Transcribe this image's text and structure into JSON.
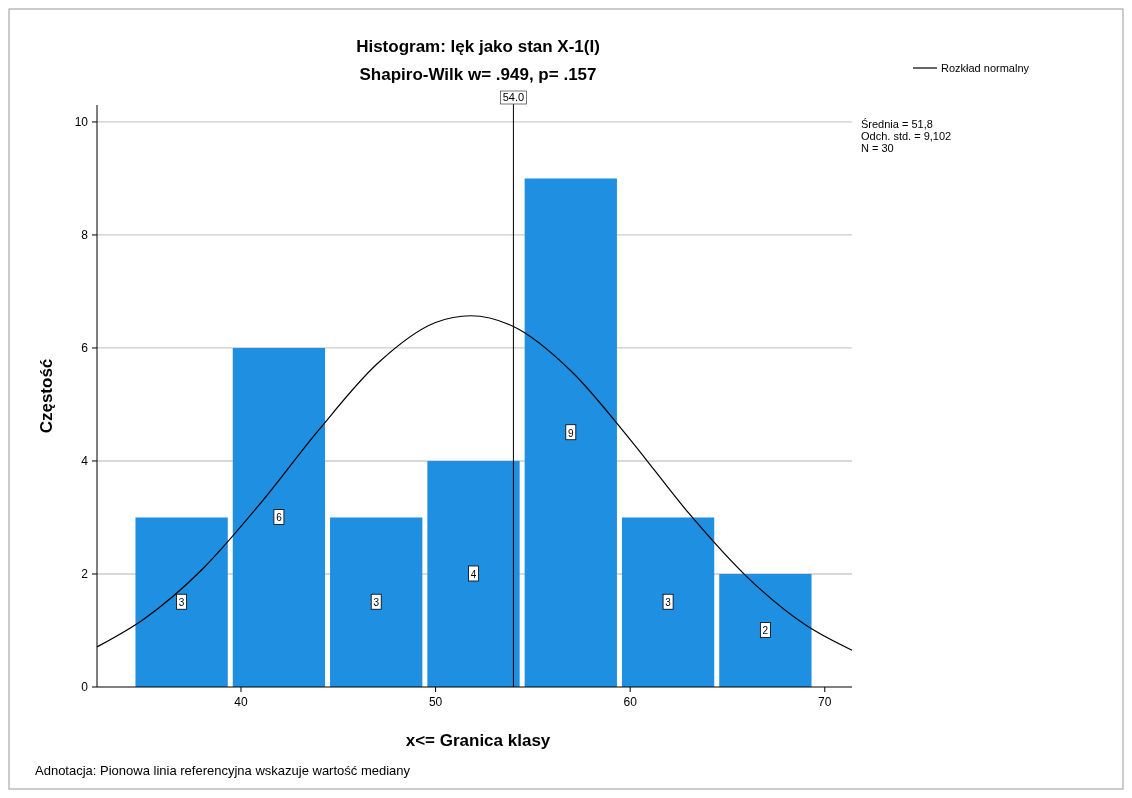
{
  "chart_data": {
    "type": "histogram",
    "title": "Histogram:  lęk jako stan X-1(I)",
    "subtitle": "Shapiro-Wilk w= .949, p= .157",
    "xlabel": "x<= Granica klasy",
    "ylabel": "Częstość",
    "bins": [
      34.5,
      39.5,
      44.5,
      49.5,
      54.5,
      59.5,
      64.5,
      69.5
    ],
    "values": [
      3,
      6,
      3,
      4,
      9,
      3,
      2
    ],
    "color": "#1e8fe1",
    "value_labels": [
      "3",
      "6",
      "3",
      "4",
      "9",
      "3",
      "2"
    ],
    "xlim": [
      32.6,
      71.4
    ],
    "ylim": [
      0,
      10.3
    ],
    "xticks": [
      40,
      50,
      60,
      70
    ],
    "yticks": [
      0,
      2,
      4,
      6,
      8,
      10
    ],
    "grid": "y",
    "legend": "top right",
    "series": [
      {
        "type": "line",
        "name": "Rozkład normalny",
        "color": "#000000",
        "x": [
          32.6,
          35,
          38,
          41,
          44,
          47,
          50,
          51.8,
          54,
          57,
          60,
          63,
          66,
          69,
          71.4
        ],
        "values": [
          0.71,
          1.2,
          2.08,
          3.25,
          4.55,
          5.72,
          6.45,
          6.57,
          6.38,
          5.58,
          4.38,
          3.08,
          1.95,
          1.1,
          0.65
        ]
      }
    ],
    "ref_lines": [
      {
        "axis": "x",
        "value": 54.0,
        "label": "54.0",
        "color": "#000000"
      }
    ],
    "annotations": [
      "Średnia = 51,8\nOdch. std. = 9,102\nN = 30",
      "Adnotacja: Pionowa linia referencyjna wskazuje wartość mediany"
    ]
  }
}
